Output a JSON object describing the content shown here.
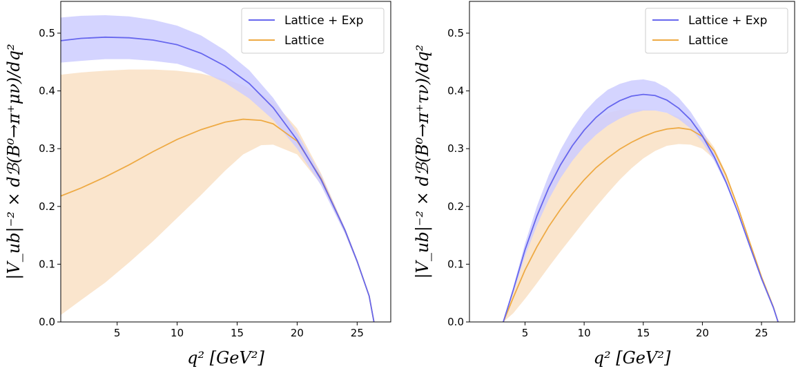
{
  "chart_data": [
    {
      "type": "line",
      "id": "left",
      "xlabel": "q² [GeV²]",
      "ylabel": "|V_ub|⁻² × dℬ(B⁰→π⁺μν)/dq²",
      "xlim": [
        0.3,
        27.8
      ],
      "ylim": [
        0.0,
        0.555
      ],
      "xticks": [
        5,
        10,
        15,
        20,
        25
      ],
      "yticks": [
        0.0,
        0.1,
        0.2,
        0.3,
        0.4,
        0.5
      ],
      "legend": {
        "placement": "top-right"
      },
      "series": [
        {
          "name": "Lattice + Exp",
          "color": "#6666ee",
          "band_color": "#ccccff",
          "x": [
            0.3,
            2,
            4,
            6,
            8,
            10,
            12,
            14,
            16,
            18,
            20,
            22,
            24,
            25,
            26,
            26.4
          ],
          "y": [
            0.487,
            0.491,
            0.493,
            0.492,
            0.488,
            0.48,
            0.465,
            0.443,
            0.413,
            0.371,
            0.315,
            0.246,
            0.158,
            0.105,
            0.045,
            0.0
          ],
          "upper": [
            0.527,
            0.53,
            0.531,
            0.529,
            0.523,
            0.513,
            0.496,
            0.47,
            0.436,
            0.388,
            0.327,
            0.254,
            0.162,
            0.108,
            0.046,
            0.0
          ],
          "lower": [
            0.449,
            0.452,
            0.455,
            0.455,
            0.452,
            0.447,
            0.434,
            0.414,
            0.387,
            0.35,
            0.3,
            0.236,
            0.152,
            0.101,
            0.043,
            0.0
          ]
        },
        {
          "name": "Lattice",
          "color": "#eeaa44",
          "band_color": "#fae5cd",
          "x": [
            0.3,
            2,
            4,
            6,
            8,
            10,
            12,
            14,
            15.5,
            17,
            18,
            20,
            22,
            24,
            25,
            26,
            26.4
          ],
          "y": [
            0.218,
            0.232,
            0.251,
            0.272,
            0.295,
            0.316,
            0.333,
            0.346,
            0.351,
            0.349,
            0.343,
            0.313,
            0.248,
            0.158,
            0.105,
            0.045,
            0.0
          ],
          "upper": [
            0.428,
            0.432,
            0.435,
            0.437,
            0.437,
            0.435,
            0.43,
            0.42,
            0.41,
            0.395,
            0.382,
            0.335,
            0.257,
            0.162,
            0.108,
            0.046,
            0.0
          ],
          "lower": [
            0.012,
            0.038,
            0.068,
            0.103,
            0.14,
            0.18,
            0.22,
            0.262,
            0.29,
            0.306,
            0.307,
            0.29,
            0.238,
            0.153,
            0.101,
            0.043,
            0.0
          ]
        }
      ]
    },
    {
      "type": "line",
      "id": "right",
      "xlabel": "q² [GeV²]",
      "ylabel": "|V_ub|⁻² × dℬ(B⁰→π⁺τν)/dq²",
      "xlim": [
        0.3,
        27.8
      ],
      "ylim": [
        0.0,
        0.555
      ],
      "xticks": [
        5,
        10,
        15,
        20,
        25
      ],
      "yticks": [
        0.0,
        0.1,
        0.2,
        0.3,
        0.4,
        0.5
      ],
      "legend": {
        "placement": "top-right"
      },
      "series": [
        {
          "name": "Lattice + Exp",
          "color": "#6666ee",
          "band_color": "#ccccff",
          "x": [
            3.16,
            4,
            5,
            6,
            7,
            8,
            9,
            10,
            11,
            12,
            13,
            14,
            15,
            16,
            17,
            18,
            19,
            20,
            21,
            22,
            23,
            24,
            25,
            26,
            26.4
          ],
          "y": [
            0.0,
            0.055,
            0.125,
            0.183,
            0.232,
            0.272,
            0.305,
            0.332,
            0.354,
            0.371,
            0.383,
            0.391,
            0.394,
            0.392,
            0.384,
            0.37,
            0.35,
            0.322,
            0.286,
            0.242,
            0.19,
            0.132,
            0.075,
            0.025,
            0.0
          ],
          "upper": [
            0.0,
            0.06,
            0.136,
            0.2,
            0.254,
            0.298,
            0.334,
            0.363,
            0.385,
            0.402,
            0.412,
            0.418,
            0.42,
            0.416,
            0.405,
            0.388,
            0.364,
            0.332,
            0.292,
            0.246,
            0.192,
            0.133,
            0.076,
            0.025,
            0.0
          ],
          "lower": [
            0.0,
            0.05,
            0.114,
            0.167,
            0.212,
            0.249,
            0.279,
            0.304,
            0.324,
            0.34,
            0.352,
            0.361,
            0.366,
            0.366,
            0.362,
            0.351,
            0.335,
            0.311,
            0.279,
            0.238,
            0.188,
            0.131,
            0.074,
            0.025,
            0.0
          ]
        },
        {
          "name": "Lattice",
          "color": "#eeaa44",
          "band_color": "#fae5cd",
          "x": [
            3.16,
            4,
            5,
            6,
            7,
            8,
            9,
            10,
            11,
            12,
            13,
            14,
            15,
            16,
            17,
            18,
            19,
            20,
            21,
            22,
            23,
            24,
            25,
            26,
            26.4
          ],
          "y": [
            0.0,
            0.042,
            0.09,
            0.13,
            0.165,
            0.195,
            0.222,
            0.246,
            0.267,
            0.284,
            0.299,
            0.311,
            0.321,
            0.329,
            0.334,
            0.336,
            0.333,
            0.321,
            0.296,
            0.254,
            0.199,
            0.138,
            0.078,
            0.026,
            0.0
          ],
          "upper": [
            0.0,
            0.057,
            0.128,
            0.19,
            0.24,
            0.281,
            0.313,
            0.337,
            0.352,
            0.362,
            0.367,
            0.368,
            0.368,
            0.366,
            0.362,
            0.355,
            0.346,
            0.33,
            0.302,
            0.258,
            0.202,
            0.14,
            0.079,
            0.026,
            0.0
          ],
          "lower": [
            0.0,
            0.015,
            0.04,
            0.067,
            0.095,
            0.122,
            0.148,
            0.174,
            0.199,
            0.223,
            0.246,
            0.266,
            0.283,
            0.296,
            0.305,
            0.308,
            0.307,
            0.3,
            0.282,
            0.246,
            0.194,
            0.135,
            0.076,
            0.025,
            0.0
          ]
        }
      ]
    }
  ]
}
